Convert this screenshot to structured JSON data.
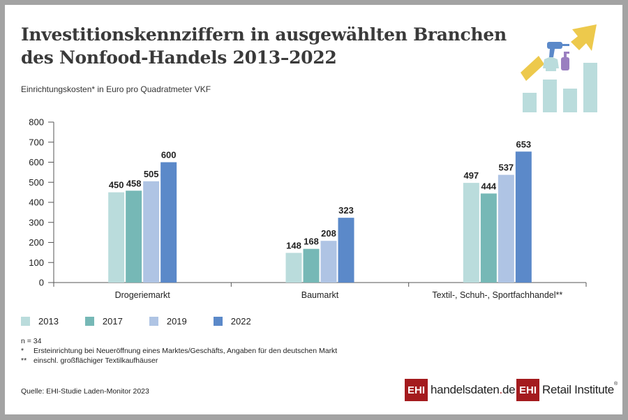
{
  "header": {
    "title_line1": "Investitionskennziffern in ausgewählten Branchen",
    "title_line2": "des Nonfood-Handels 2013–2022",
    "subtitle": "Einrichtungskosten* in Euro pro Quadratmeter VKF",
    "illustration_icon": "growth-chart-with-products-icon"
  },
  "chart_data": {
    "type": "bar",
    "title": "Investitionskennziffern in ausgewählten Branchen des Nonfood-Handels 2013–2022",
    "ylabel": "Einrichtungskosten* in Euro pro Quadratmeter VKF",
    "xlabel": "",
    "ylim": [
      0,
      800
    ],
    "yticks": [
      "0",
      "100",
      "200",
      "300",
      "400",
      "500",
      "600",
      "700",
      "800"
    ],
    "categories": [
      "Drogeriemarkt",
      "Baumarkt",
      "Textil-, Schuh-, Sportfachhandel**"
    ],
    "series": [
      {
        "name": "2013",
        "color": "#badcdc",
        "values": [
          450,
          148,
          497
        ]
      },
      {
        "name": "2017",
        "color": "#76b8b6",
        "values": [
          458,
          168,
          444
        ]
      },
      {
        "name": "2019",
        "color": "#afc4e4",
        "values": [
          505,
          208,
          537
        ]
      },
      {
        "name": "2022",
        "color": "#5b89c9",
        "values": [
          600,
          323,
          653
        ]
      }
    ],
    "legend_position": "bottom-left",
    "grid": false
  },
  "legend": [
    "2013",
    "2017",
    "2019",
    "2022"
  ],
  "notes": {
    "n": "n = 34",
    "footnote1_mark": "*",
    "footnote1": "Ersteinrichtung bei Neueröffnung eines Marktes/Geschäfts, Angaben für den deutschen Markt",
    "footnote2_mark": "**",
    "footnote2": "einschl. großflächiger Textilkaufhäuser"
  },
  "source": "Quelle: EHI-Studie Laden-Monitor 2023",
  "logos": {
    "logo1_box": "EHI",
    "logo1_name": "handelsdaten",
    "logo1_dot": ".",
    "logo1_tld": "de",
    "logo2_box": "EHI",
    "logo2_name": "Retail Institute",
    "logo2_reg": "®"
  },
  "colors": {
    "title": "#3a3a3a",
    "brand_red": "#a41b1e",
    "icon_yellow": "#edc94c",
    "icon_blue": "#5b89c9",
    "icon_purple": "#9a7fc0",
    "icon_teal": "#badcdc"
  }
}
